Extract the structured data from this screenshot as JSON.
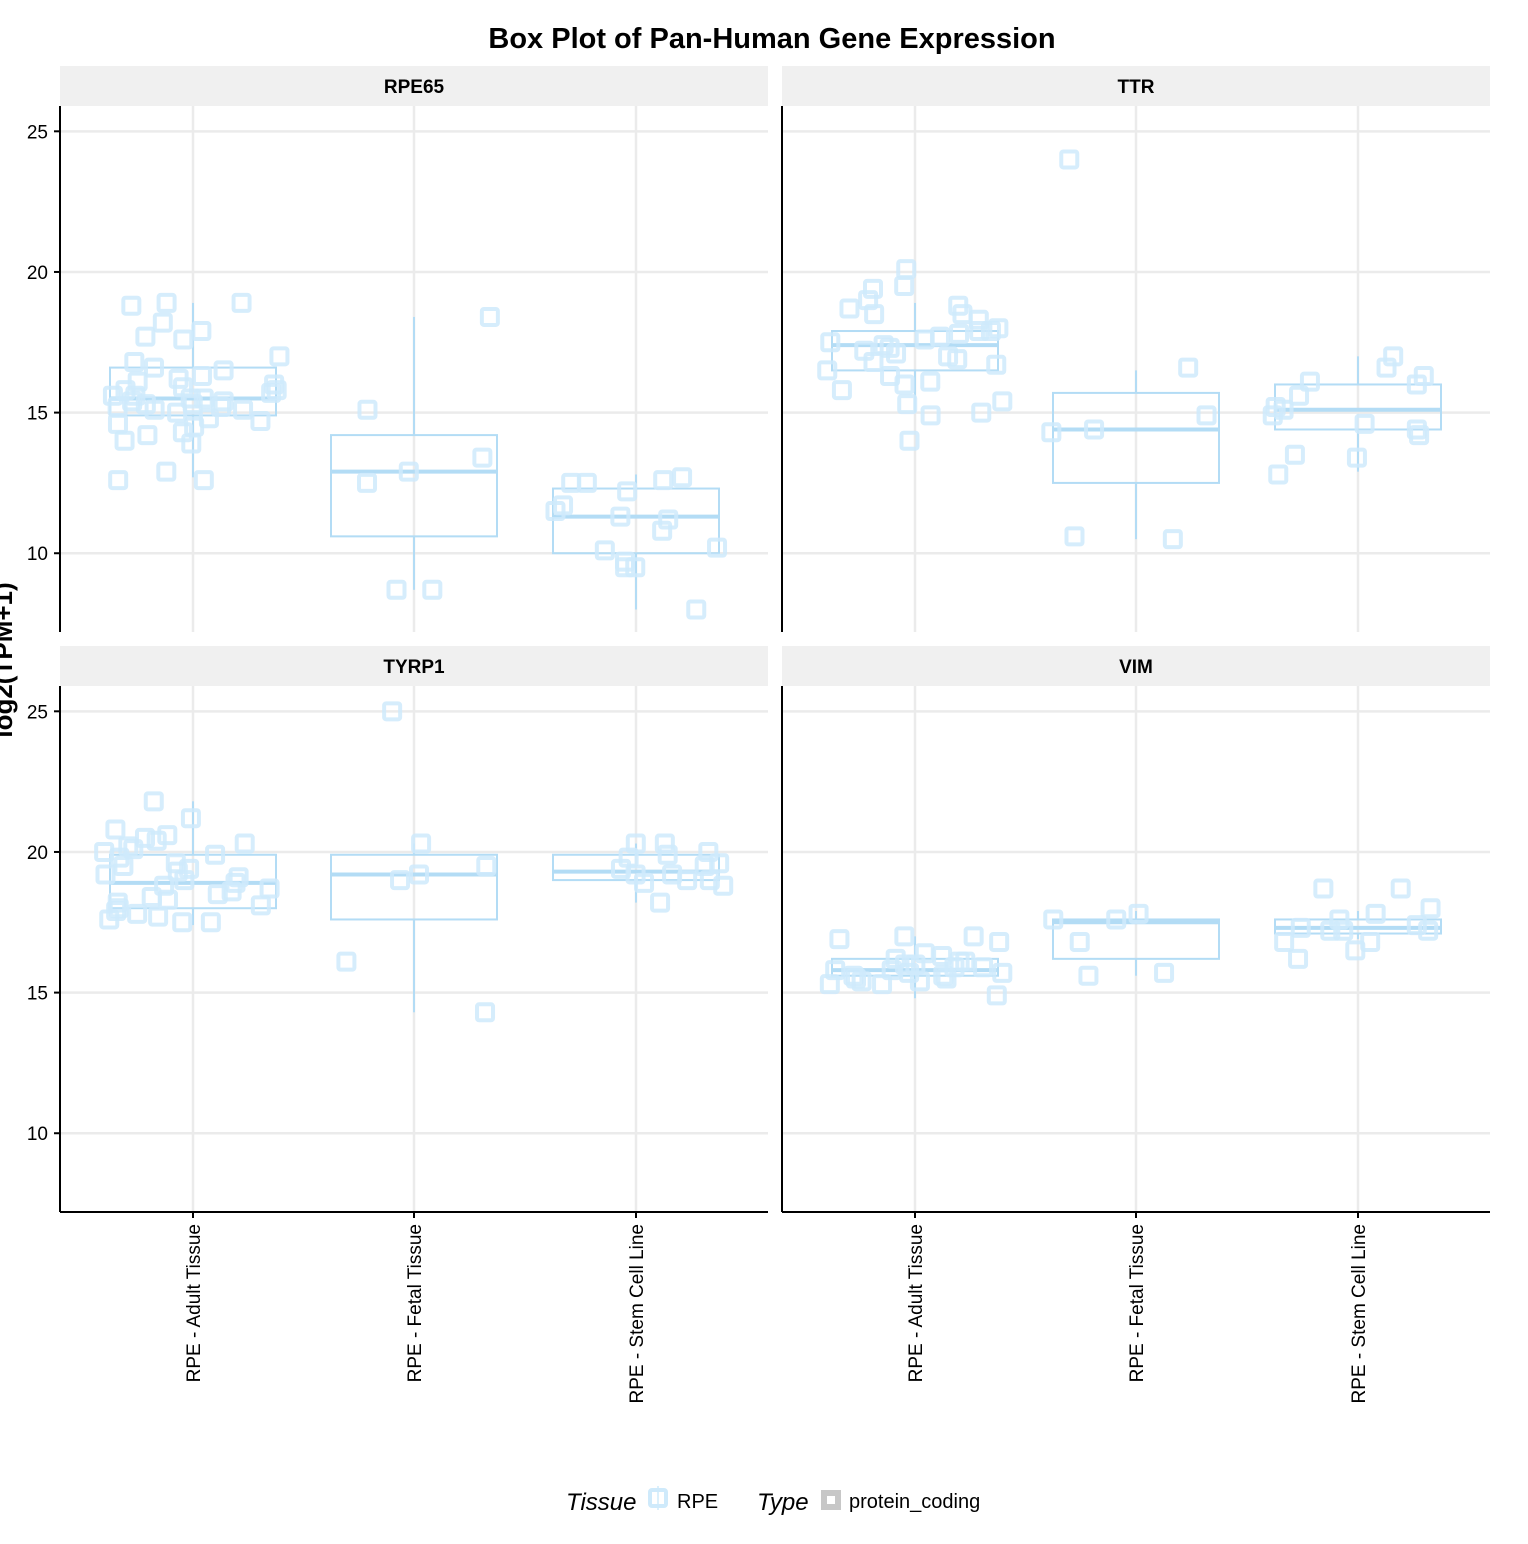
{
  "chart_data": {
    "type": "box",
    "title": "Box Plot of Pan-Human Gene Expression",
    "ylabel": "log2(TPM+1)",
    "ylim": [
      7.2,
      25.9
    ],
    "yticks": [
      10,
      15,
      20,
      25
    ],
    "grid": true,
    "categories": [
      "RPE - Adult Tissue",
      "RPE - Fetal Tissue",
      "RPE - Stem Cell Line"
    ],
    "legend": {
      "position": "bottom",
      "tissue_title": "Tissue",
      "tissue_label": "RPE",
      "type_title": "Type",
      "type_label": "protein_coding"
    },
    "colors": {
      "box": "#b3dcf5",
      "point": "#cfeafb",
      "strip": "#f0f0f0",
      "grid": "#ebebeb",
      "axis": "#000000"
    },
    "facets": [
      {
        "name": "RPE65",
        "boxes": [
          {
            "category": "RPE - Adult Tissue",
            "whisker_low": 12.7,
            "q1": 14.9,
            "median": 15.5,
            "q3": 16.6,
            "whisker_high": 18.9,
            "points": [
              13.9,
              12.6,
              14.0,
              14.2,
              14.3,
              14.5,
              14.6,
              14.7,
              14.8,
              15.0,
              15.1,
              15.1,
              15.2,
              15.2,
              15.3,
              15.3,
              15.4,
              15.4,
              15.5,
              15.5,
              15.6,
              15.6,
              15.7,
              15.8,
              15.8,
              15.9,
              16.0,
              16.1,
              16.2,
              16.3,
              16.5,
              16.6,
              16.8,
              17.0,
              17.6,
              17.7,
              17.9,
              18.2,
              18.8,
              18.9,
              18.9,
              12.9,
              12.6
            ]
          },
          {
            "category": "RPE - Fetal Tissue",
            "whisker_low": 8.7,
            "q1": 10.6,
            "median": 12.9,
            "q3": 14.2,
            "whisker_high": 18.4,
            "points": [
              18.4,
              15.1,
              13.4,
              12.9,
              12.5,
              8.7,
              8.7
            ]
          },
          {
            "category": "RPE - Stem Cell Line",
            "whisker_low": 8.0,
            "q1": 10.0,
            "median": 11.3,
            "q3": 12.3,
            "whisker_high": 12.8,
            "points": [
              12.7,
              12.6,
              12.5,
              12.5,
              12.2,
              11.7,
              11.5,
              11.3,
              11.2,
              10.8,
              10.2,
              10.1,
              9.7,
              9.5,
              9.5,
              8.0
            ]
          }
        ]
      },
      {
        "name": "TTR",
        "boxes": [
          {
            "category": "RPE - Adult Tissue",
            "whisker_low": 15.0,
            "q1": 16.5,
            "median": 17.4,
            "q3": 17.9,
            "whisker_high": 18.9,
            "points": [
              20.1,
              19.5,
              19.4,
              19.0,
              18.8,
              18.7,
              18.5,
              18.5,
              18.3,
              18.0,
              17.9,
              17.9,
              17.8,
              17.7,
              17.6,
              17.5,
              17.4,
              17.3,
              17.2,
              17.1,
              17.0,
              16.9,
              16.8,
              16.7,
              16.5,
              16.3,
              16.1,
              16.0,
              15.8,
              15.4,
              15.3,
              15.0,
              14.9,
              14.0
            ]
          },
          {
            "category": "RPE - Fetal Tissue",
            "whisker_low": 10.5,
            "q1": 12.5,
            "median": 14.4,
            "q3": 15.7,
            "whisker_high": 16.5,
            "points": [
              24.0,
              16.6,
              14.9,
              14.4,
              14.3,
              10.6,
              10.5
            ]
          },
          {
            "category": "RPE - Stem Cell Line",
            "whisker_low": 12.9,
            "q1": 14.4,
            "median": 15.1,
            "q3": 16.0,
            "whisker_high": 17.0,
            "points": [
              17.0,
              16.6,
              16.3,
              16.1,
              16.0,
              15.6,
              15.2,
              15.1,
              14.9,
              14.6,
              14.4,
              14.2,
              13.5,
              13.4,
              12.8
            ]
          }
        ]
      },
      {
        "name": "TYRP1",
        "boxes": [
          {
            "category": "RPE - Adult Tissue",
            "whisker_low": 17.4,
            "q1": 18.0,
            "median": 18.9,
            "q3": 19.9,
            "whisker_high": 21.8,
            "points": [
              21.8,
              21.2,
              20.8,
              20.6,
              20.5,
              20.4,
              20.3,
              20.2,
              20.1,
              20.0,
              19.9,
              19.8,
              19.6,
              19.5,
              19.4,
              19.3,
              19.2,
              19.1,
              19.0,
              18.9,
              18.8,
              18.7,
              18.6,
              18.5,
              18.4,
              18.3,
              18.2,
              18.1,
              18.0,
              17.9,
              17.8,
              17.7,
              17.6,
              17.5,
              17.5
            ]
          },
          {
            "category": "RPE - Fetal Tissue",
            "whisker_low": 14.3,
            "q1": 17.6,
            "median": 19.2,
            "q3": 19.9,
            "whisker_high": 20.3,
            "points": [
              25.0,
              20.3,
              19.5,
              19.2,
              19.0,
              16.1,
              14.3
            ]
          },
          {
            "category": "RPE - Stem Cell Line",
            "whisker_low": 18.2,
            "q1": 19.0,
            "median": 19.3,
            "q3": 19.9,
            "whisker_high": 20.3,
            "points": [
              20.3,
              20.3,
              20.0,
              19.9,
              19.8,
              19.6,
              19.5,
              19.4,
              19.2,
              19.2,
              19.0,
              19.0,
              18.9,
              18.8,
              18.2
            ]
          }
        ]
      },
      {
        "name": "VIM",
        "boxes": [
          {
            "category": "RPE - Adult Tissue",
            "whisker_low": 14.8,
            "q1": 15.6,
            "median": 15.8,
            "q3": 16.2,
            "whisker_high": 17.0,
            "points": [
              17.0,
              17.0,
              16.9,
              16.8,
              16.4,
              16.3,
              16.2,
              16.1,
              16.1,
              16.0,
              16.0,
              15.9,
              15.9,
              15.8,
              15.8,
              15.7,
              15.7,
              15.6,
              15.6,
              15.5,
              15.5,
              15.4,
              15.4,
              15.3,
              15.3,
              14.9
            ]
          },
          {
            "category": "RPE - Fetal Tissue",
            "whisker_low": 15.6,
            "q1": 16.2,
            "median": 17.5,
            "q3": 17.6,
            "whisker_high": 17.9,
            "points": [
              17.8,
              17.6,
              17.6,
              16.8,
              15.7,
              15.6
            ]
          },
          {
            "category": "RPE - Stem Cell Line",
            "whisker_low": 16.9,
            "q1": 17.1,
            "median": 17.3,
            "q3": 17.6,
            "whisker_high": 17.9,
            "points": [
              18.7,
              18.7,
              18.0,
              17.8,
              17.6,
              17.4,
              17.3,
              17.2,
              17.2,
              17.2,
              16.8,
              16.8,
              16.2,
              16.5
            ]
          }
        ]
      }
    ]
  }
}
